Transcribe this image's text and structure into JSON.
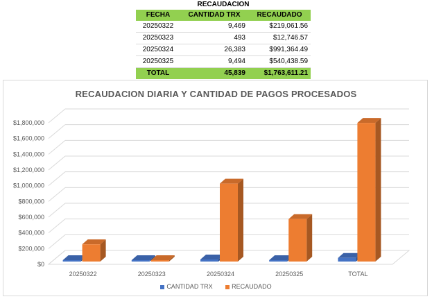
{
  "table": {
    "title": "RECAUDACION",
    "headers": [
      "FECHA",
      "CANTIDAD TRX",
      "RECAUDADO"
    ],
    "rows": [
      [
        "20250322",
        "9,469",
        "$219,061.56"
      ],
      [
        "20250323",
        "493",
        "$12,746.57"
      ],
      [
        "20250324",
        "26,383",
        "$991,364.49"
      ],
      [
        "20250325",
        "9,494",
        "$540,438.59"
      ]
    ],
    "total": [
      "TOTAL",
      "45,839",
      "$1,763,611.21"
    ]
  },
  "chart_data": {
    "type": "bar",
    "title": "RECAUDACION DIARIA Y CANTIDAD DE PAGOS PROCESADOS",
    "categories": [
      "20250322",
      "20250323",
      "20250324",
      "20250325",
      "TOTAL"
    ],
    "series": [
      {
        "name": "CANTIDAD TRX",
        "values": [
          9469,
          493,
          26383,
          9494,
          45839
        ],
        "color": "#4472c4"
      },
      {
        "name": "RECAUDADO",
        "values": [
          219061.56,
          12746.57,
          991364.49,
          540438.59,
          1763611.21
        ],
        "color": "#ed7d31"
      }
    ],
    "ylim": [
      0,
      1800000
    ],
    "yticks": [
      "$0",
      "$200,000",
      "$400,000",
      "$600,000",
      "$800,000",
      "$1,000,000",
      "$1,200,000",
      "$1,400,000",
      "$1,600,000",
      "$1,800,000"
    ],
    "grid": true,
    "legend": "bottom"
  }
}
